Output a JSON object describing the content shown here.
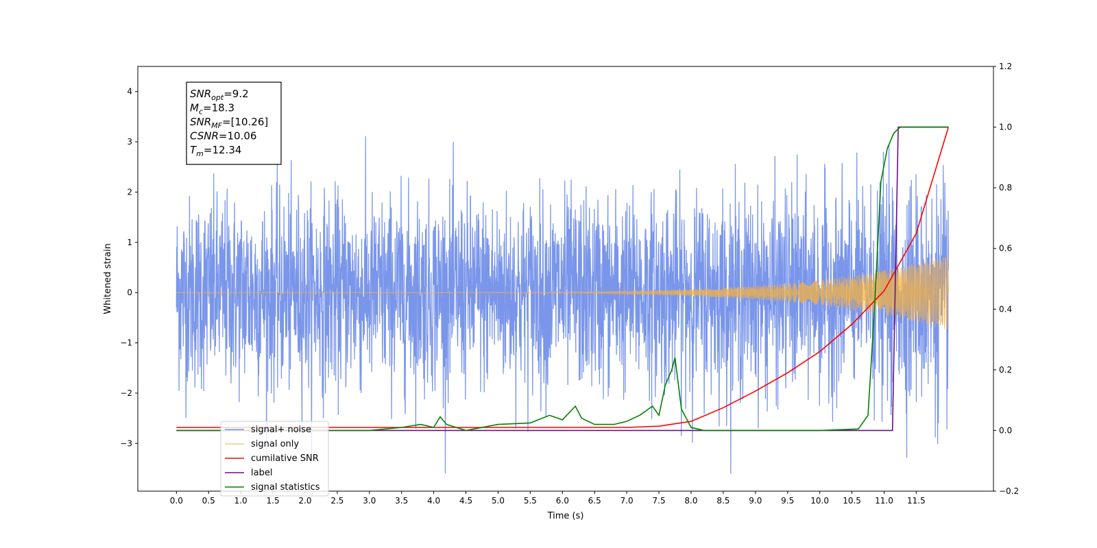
{
  "chart_data": {
    "type": "line",
    "title": "",
    "xlabel": "Time (s)",
    "ylabel": "Whitened strain",
    "xlim": [
      -0.6,
      12.7
    ],
    "ylim": [
      -3.95,
      4.5
    ],
    "y2lim": [
      -0.2,
      1.2
    ],
    "x_ticks": [
      "0.0",
      "0.5",
      "1.0",
      "1.5",
      "2.0",
      "2.5",
      "3.0",
      "3.5",
      "4.0",
      "4.5",
      "5.0",
      "5.5",
      "6.0",
      "6.5",
      "7.0",
      "7.5",
      "8.0",
      "8.5",
      "9.0",
      "9.5",
      "10.0",
      "10.5",
      "11.0",
      "11.5"
    ],
    "y_ticks": [
      "−3",
      "−2",
      "−1",
      "0",
      "1",
      "2",
      "3",
      "4"
    ],
    "y2_ticks": [
      "−0.2",
      "0.0",
      "0.2",
      "0.4",
      "0.6",
      "0.8",
      "1.0",
      "1.2"
    ],
    "grid": false,
    "legend_position": "lower-left",
    "stats": [
      "SNR_opt=9.2",
      "M_c=18.3",
      "SNR_MF=[10.26]",
      "CSNR=10.06",
      "T_m=12.34"
    ],
    "stats_parts": [
      {
        "base": "SNR",
        "sub": "opt",
        "rest": "=9.2"
      },
      {
        "base": "M",
        "sub": "c",
        "rest": "=18.3"
      },
      {
        "base": "SNR",
        "sub": "MF",
        "rest": "=[10.26]"
      },
      {
        "base": "CSNR",
        "sub": "",
        "rest": "=10.06"
      },
      {
        "base": "T",
        "sub": "m",
        "rest": "=12.34"
      }
    ],
    "series": [
      {
        "name": "signal+ noise",
        "axis": "left",
        "color": "#4169e1",
        "style": "noise",
        "x_range": [
          0.0,
          12.0
        ],
        "envelope_typical": [
          -2.0,
          2.0
        ],
        "max": 4.1,
        "min": -3.6
      },
      {
        "name": "signal only",
        "axis": "left",
        "color": "#f5b041",
        "style": "chirp",
        "x_range": [
          0.0,
          12.0
        ],
        "amplitude_end": 0.75,
        "amplitude_visible_from": 7.5
      },
      {
        "name": "cumilative SNR",
        "axis": "right",
        "color": "#ff0000",
        "style": "line",
        "x": [
          0.0,
          7.0,
          7.5,
          8.0,
          8.5,
          9.0,
          9.5,
          10.0,
          10.5,
          11.0,
          11.5,
          12.0
        ],
        "y": [
          0.01,
          0.01,
          0.014,
          0.03,
          0.075,
          0.13,
          0.19,
          0.26,
          0.35,
          0.46,
          0.65,
          1.0
        ]
      },
      {
        "name": "label",
        "axis": "right",
        "color": "#6a0d83",
        "style": "line",
        "x": [
          0.0,
          11.13,
          11.22,
          12.0
        ],
        "y": [
          0.0,
          0.0,
          1.0,
          1.0
        ]
      },
      {
        "name": "signal statistics",
        "axis": "right",
        "color": "#008000",
        "style": "line",
        "x": [
          0.0,
          3.0,
          3.5,
          3.8,
          4.0,
          4.1,
          4.2,
          4.5,
          5.0,
          5.5,
          5.8,
          6.0,
          6.2,
          6.3,
          6.5,
          6.8,
          7.0,
          7.2,
          7.4,
          7.5,
          7.6,
          7.7,
          7.75,
          7.85,
          8.0,
          8.2,
          9.0,
          10.0,
          10.6,
          10.75,
          10.85,
          10.95,
          11.05,
          11.15,
          11.25,
          12.0
        ],
        "y": [
          0.0,
          0.0,
          0.01,
          0.02,
          0.01,
          0.045,
          0.02,
          0.0,
          0.02,
          0.025,
          0.05,
          0.035,
          0.08,
          0.04,
          0.02,
          0.02,
          0.03,
          0.05,
          0.08,
          0.05,
          0.15,
          0.2,
          0.24,
          0.07,
          0.01,
          0.0,
          0.0,
          0.0,
          0.005,
          0.05,
          0.4,
          0.82,
          0.93,
          0.98,
          1.0,
          1.0
        ]
      }
    ]
  }
}
